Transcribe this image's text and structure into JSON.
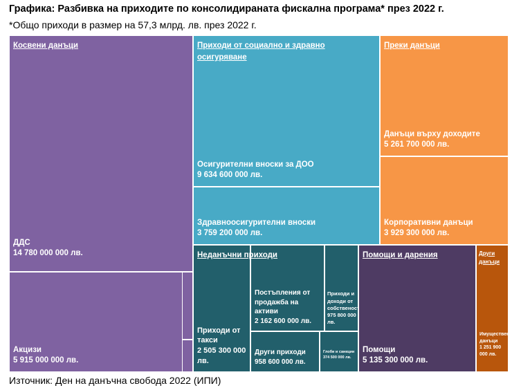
{
  "title": "Графика: Разбивка на приходите по консолидираната фискална програма* през 2022 г.",
  "subtitle": "*Общо приходи в размер на 57,3 млрд. лв. през 2022 г.",
  "source": "Източник: Ден на данъчна свобода 2022 (ИПИ)",
  "colors": {
    "indirect": "#7f62a1",
    "social": "#48aac6",
    "direct": "#f79646",
    "nontax": "#225f6b",
    "grants": "#4e3b63",
    "other": "#b8560c"
  },
  "chart_data": {
    "type": "treemap",
    "title": "Разбивка на приходите по консолидираната фискална програма* през 2022 г.",
    "total_note": "*Общо приходи в размер на 57,3 млрд. лв. през 2022 г.",
    "unit": "лв.",
    "groups": [
      {
        "key": "indirect",
        "name": "Косвени данъци",
        "items": [
          {
            "key": "vat",
            "name": "ДДС",
            "value": 14780000000,
            "value_label": "14 780 000 000 лв."
          },
          {
            "key": "excise",
            "name": "Акцизи",
            "value": 5915000000,
            "value_label": "5 915 000 000 лв."
          }
        ]
      },
      {
        "key": "social",
        "name": "Приходи от социално и здравно осигуряване",
        "items": [
          {
            "key": "doo",
            "name": "Осигурителни вноски за ДОО",
            "value": 9634600000,
            "value_label": "9 634 600 000 лв."
          },
          {
            "key": "health",
            "name": "Здравноосигурителни вноски",
            "value": 3759200000,
            "value_label": "3 759 200 000 лв."
          }
        ]
      },
      {
        "key": "direct",
        "name": "Преки данъци",
        "items": [
          {
            "key": "income",
            "name": "Данъци върху доходите",
            "value": 5261700000,
            "value_label": "5 261 700 000 лв."
          },
          {
            "key": "corporate",
            "name": "Корпоративни данъци",
            "value": 3929300000,
            "value_label": "3 929 300 000 лв."
          }
        ]
      },
      {
        "key": "nontax",
        "name": "Неданъчни приходи",
        "items": [
          {
            "key": "fees",
            "name": "Приходи от такси",
            "value": 2505300000,
            "value_label": "2 505 300 000 лв."
          },
          {
            "key": "assets",
            "name": "Постъпления от продажба на активи",
            "value": 2162600000,
            "value_label": "2 162 600 000 лв."
          },
          {
            "key": "property_income",
            "name": "Приходи и доходи от собственост",
            "value": 975800000,
            "value_label": "975 800 000 лв."
          },
          {
            "key": "other_income",
            "name": "Други приходи",
            "value": 958600000,
            "value_label": "958 600 000 лв."
          },
          {
            "key": "fines",
            "name": "Глоби и санкции",
            "value": 374500000,
            "value_label": "374 500 000 лв."
          }
        ]
      },
      {
        "key": "grants",
        "name": "Помощи и дарения",
        "items": [
          {
            "key": "aid",
            "name": "Помощи",
            "value": 5135300000,
            "value_label": "5 135 300 000 лв."
          }
        ]
      },
      {
        "key": "other",
        "name": "Други данъци",
        "items": [
          {
            "key": "property_tax",
            "name": "Имуществени данъци",
            "value": 1251900000,
            "value_label": "1 251 900 000 лв."
          }
        ]
      }
    ]
  }
}
